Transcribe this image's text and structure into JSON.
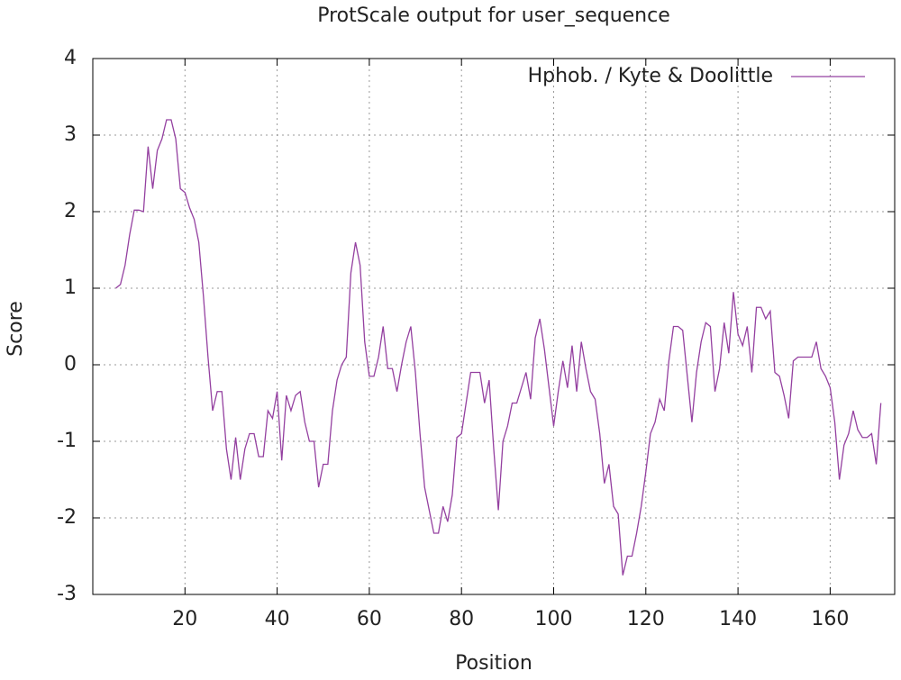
{
  "chart_data": {
    "type": "line",
    "title": "ProtScale output for user_sequence",
    "xlabel": "Position",
    "ylabel": "Score",
    "x": [
      5,
      6,
      7,
      8,
      9,
      10,
      11,
      12,
      13,
      14,
      15,
      16,
      17,
      18,
      19,
      20,
      21,
      22,
      23,
      24,
      25,
      26,
      27,
      28,
      29,
      30,
      31,
      32,
      33,
      34,
      35,
      36,
      37,
      38,
      39,
      40,
      41,
      42,
      43,
      44,
      45,
      46,
      47,
      48,
      49,
      50,
      51,
      52,
      53,
      54,
      55,
      56,
      57,
      58,
      59,
      60,
      61,
      62,
      63,
      64,
      65,
      66,
      67,
      68,
      69,
      70,
      71,
      72,
      73,
      74,
      75,
      76,
      77,
      78,
      79,
      80,
      81,
      82,
      83,
      84,
      85,
      86,
      87,
      88,
      89,
      90,
      91,
      92,
      93,
      94,
      95,
      96,
      97,
      98,
      99,
      100,
      101,
      102,
      103,
      104,
      105,
      106,
      107,
      108,
      109,
      110,
      111,
      112,
      113,
      114,
      115,
      116,
      117,
      118,
      119,
      120,
      121,
      122,
      123,
      124,
      125,
      126,
      127,
      128,
      129,
      130,
      131,
      132,
      133,
      134,
      135,
      136,
      137,
      138,
      139,
      140,
      141,
      142,
      143,
      144,
      145,
      146,
      147,
      148,
      149,
      150,
      151,
      152,
      153,
      154,
      155,
      156,
      157,
      158,
      159,
      160,
      161,
      162,
      163,
      164,
      165,
      166,
      167,
      168,
      169,
      170,
      171
    ],
    "series": [
      {
        "name": "Hphob. / Kyte & Doolittle",
        "color": "#9440a0",
        "values": [
          1.0,
          1.05,
          1.3,
          1.7,
          2.02,
          2.02,
          2.0,
          2.85,
          2.3,
          2.8,
          2.95,
          3.2,
          3.2,
          2.95,
          2.3,
          2.25,
          2.05,
          1.9,
          1.6,
          0.9,
          0.1,
          -0.6,
          -0.35,
          -0.35,
          -1.1,
          -1.5,
          -0.95,
          -1.5,
          -1.1,
          -0.9,
          -0.9,
          -1.2,
          -1.2,
          -0.6,
          -0.7,
          -0.35,
          -1.25,
          -0.4,
          -0.6,
          -0.4,
          -0.35,
          -0.75,
          -1.0,
          -1.0,
          -1.6,
          -1.3,
          -1.3,
          -0.6,
          -0.2,
          0.0,
          0.1,
          1.2,
          1.6,
          1.3,
          0.3,
          -0.15,
          -0.15,
          0.1,
          0.5,
          -0.05,
          -0.05,
          -0.35,
          0.0,
          0.3,
          0.5,
          -0.1,
          -0.9,
          -1.6,
          -1.9,
          -2.2,
          -2.2,
          -1.85,
          -2.05,
          -1.7,
          -0.95,
          -0.9,
          -0.5,
          -0.1,
          -0.1,
          -0.1,
          -0.5,
          -0.2,
          -1.1,
          -1.9,
          -1.0,
          -0.8,
          -0.5,
          -0.5,
          -0.3,
          -0.1,
          -0.45,
          0.35,
          0.6,
          0.2,
          -0.3,
          -0.8,
          -0.35,
          0.05,
          -0.3,
          0.25,
          -0.35,
          0.3,
          -0.05,
          -0.35,
          -0.45,
          -0.9,
          -1.55,
          -1.3,
          -1.85,
          -1.95,
          -2.75,
          -2.5,
          -2.5,
          -2.2,
          -1.85,
          -1.4,
          -0.9,
          -0.75,
          -0.45,
          -0.6,
          0.05,
          0.5,
          0.5,
          0.45,
          -0.15,
          -0.75,
          -0.1,
          0.3,
          0.55,
          0.5,
          -0.35,
          -0.05,
          0.55,
          0.15,
          0.95,
          0.4,
          0.25,
          0.5,
          -0.1,
          0.75,
          0.75,
          0.6,
          0.7,
          -0.1,
          -0.15,
          -0.4,
          -0.7,
          0.05,
          0.1,
          0.1,
          0.1,
          0.1,
          0.3,
          -0.05,
          -0.15,
          -0.3,
          -0.75,
          -1.5,
          -1.05,
          -0.9,
          -0.6,
          -0.85,
          -0.95,
          -0.95,
          -0.9,
          -1.3,
          -0.5
        ]
      }
    ],
    "xlim": [
      0,
      174
    ],
    "xticks": [
      20,
      40,
      60,
      80,
      100,
      120,
      140,
      160
    ],
    "ylim": [
      -3,
      4
    ],
    "yticks": [
      -3,
      -2,
      -1,
      0,
      1,
      2,
      3,
      4
    ],
    "grid": true,
    "legend": "top-right"
  }
}
